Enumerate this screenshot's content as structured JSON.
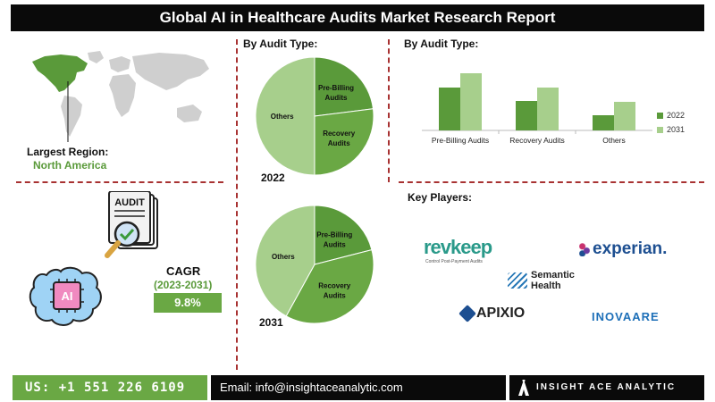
{
  "title": "Global AI in Healthcare Audits Market Research Report",
  "region": {
    "label": "Largest Region:",
    "value": "North America"
  },
  "cagr": {
    "label": "CAGR",
    "period": "(2023-2031)",
    "value": "9.8%"
  },
  "pie_panel": {
    "title": "By Audit Type:",
    "year_top": "2022",
    "year_bottom": "2031"
  },
  "bar_panel": {
    "title": "By Audit Type:"
  },
  "key_players": {
    "title": "Key Players:",
    "revkeep": "revkeep",
    "revkeep_tagline": "Control Post-Payment Audits",
    "experian": "experian.",
    "semantic_line1": "Semantic",
    "semantic_line2": "Health",
    "apixio": "APIXIO",
    "inovaare": "INOVAARE"
  },
  "audit_icon_text": "AUDIT",
  "ai_icon_text": "AI",
  "footer": {
    "phone": "US: +1 551 226 6109",
    "email": "Email: info@insightaceanalytic.com",
    "brand": "INSIGHT ACE ANALYTIC"
  },
  "colors": {
    "dark_green": "#5a9a3a",
    "light_green": "#a7cf8c",
    "mid_green": "#8fbf6a",
    "dash_red": "#a83232"
  },
  "chart_data": [
    {
      "type": "pie",
      "year": "2022",
      "slices": [
        {
          "label_line1": "Pre-Billing",
          "label_line2": "Audits",
          "value": 23,
          "color": "#5a9a3a"
        },
        {
          "label_line1": "Recovery",
          "label_line2": "Audits",
          "value": 27,
          "color": "#6aa844"
        },
        {
          "label_line1": "Others",
          "label_line2": "",
          "value": 50,
          "color": "#a7cf8c"
        }
      ]
    },
    {
      "type": "pie",
      "year": "2031",
      "slices": [
        {
          "label_line1": "Pre-Billing",
          "label_line2": "Audits",
          "value": 21,
          "color": "#5a9a3a"
        },
        {
          "label_line1": "Recovery",
          "label_line2": "Audits",
          "value": 37,
          "color": "#6aa844"
        },
        {
          "label_line1": "Others",
          "label_line2": "",
          "value": 42,
          "color": "#a7cf8c"
        }
      ]
    },
    {
      "type": "bar",
      "categories": [
        "Pre-Billing Audits",
        "Recovery Audits",
        "Others"
      ],
      "series": [
        {
          "name": "2022",
          "values": [
            48,
            33,
            17
          ],
          "color": "#5a9a3a"
        },
        {
          "name": "2031",
          "values": [
            64,
            48,
            32
          ],
          "color": "#a7cf8c"
        }
      ],
      "ylim": [
        0,
        70
      ]
    }
  ]
}
